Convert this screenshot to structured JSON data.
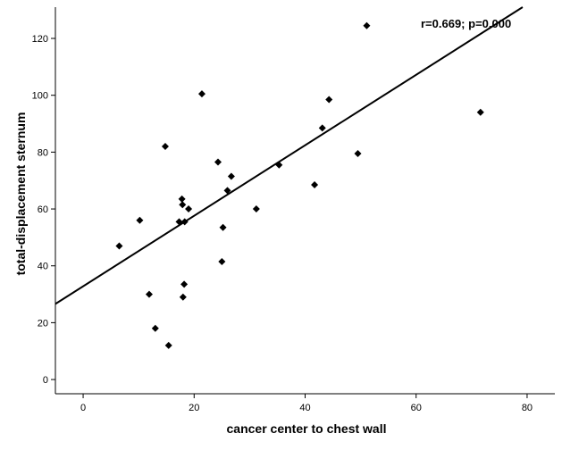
{
  "chart_data": {
    "type": "scatter",
    "title": "",
    "xlabel": "cancer center to chest wall",
    "ylabel": "total-displacement sternum",
    "xlim": [
      -5,
      85
    ],
    "ylim": [
      -5,
      131
    ],
    "xticks": [
      0,
      20,
      40,
      60,
      80
    ],
    "yticks": [
      0,
      20,
      40,
      60,
      80,
      100,
      120
    ],
    "grid": false,
    "annotation": "r=0.669; p=0.000",
    "fit_line": {
      "slope": 1.24,
      "intercept": 32.8
    },
    "points": [
      {
        "x": 6.5,
        "y": 47
      },
      {
        "x": 10.2,
        "y": 56
      },
      {
        "x": 11.9,
        "y": 30
      },
      {
        "x": 13.0,
        "y": 18
      },
      {
        "x": 14.8,
        "y": 82
      },
      {
        "x": 15.4,
        "y": 12
      },
      {
        "x": 17.3,
        "y": 55.5
      },
      {
        "x": 17.8,
        "y": 63.5
      },
      {
        "x": 17.9,
        "y": 61.5
      },
      {
        "x": 18.0,
        "y": 29
      },
      {
        "x": 18.2,
        "y": 33.5
      },
      {
        "x": 18.3,
        "y": 55.5
      },
      {
        "x": 19.0,
        "y": 60
      },
      {
        "x": 21.4,
        "y": 100.5
      },
      {
        "x": 24.3,
        "y": 76.5
      },
      {
        "x": 25.0,
        "y": 41.5
      },
      {
        "x": 25.2,
        "y": 53.5
      },
      {
        "x": 26.0,
        "y": 66.5
      },
      {
        "x": 26.7,
        "y": 71.5
      },
      {
        "x": 31.2,
        "y": 60
      },
      {
        "x": 35.3,
        "y": 75.5
      },
      {
        "x": 41.7,
        "y": 68.5
      },
      {
        "x": 43.1,
        "y": 88.5
      },
      {
        "x": 44.3,
        "y": 98.5
      },
      {
        "x": 49.5,
        "y": 79.5
      },
      {
        "x": 51.1,
        "y": 124.5
      },
      {
        "x": 71.6,
        "y": 94
      }
    ]
  }
}
